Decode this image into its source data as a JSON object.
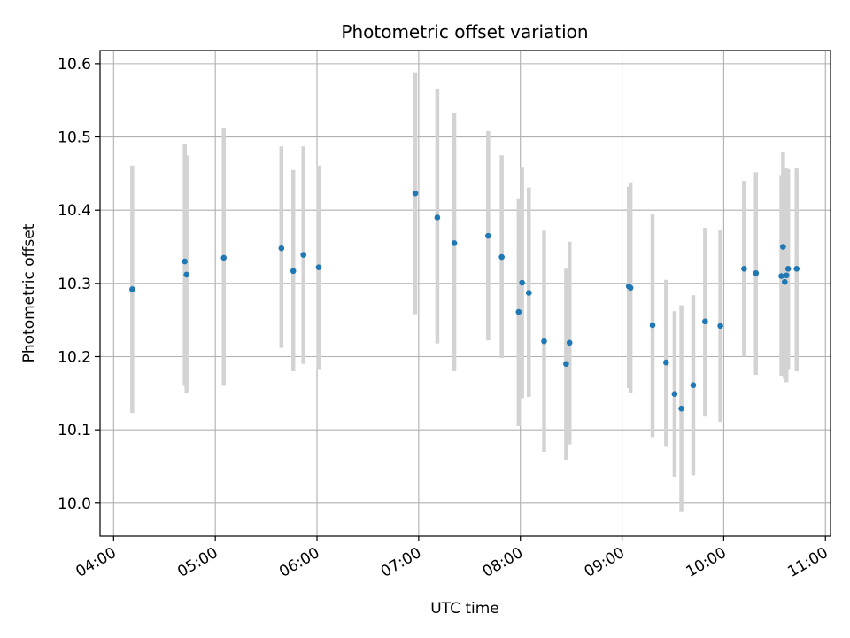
{
  "chart_data": {
    "type": "scatter",
    "title": "Photometric offset variation",
    "xlabel": "UTC time",
    "ylabel": "Photometric offset",
    "x_ticks": [
      "04:00",
      "05:00",
      "06:00",
      "07:00",
      "08:00",
      "09:00",
      "10:00",
      "11:00"
    ],
    "y_ticks": [
      "10.0",
      "10.1",
      "10.2",
      "10.3",
      "10.4",
      "10.5",
      "10.6"
    ],
    "xlim": [
      "03:52",
      "11:03"
    ],
    "ylim": [
      9.955,
      10.618
    ],
    "grid": true,
    "point_color": "#1f77b4",
    "errorbar_color": "#d3d3d3",
    "points": [
      {
        "time": "04:11",
        "value": 10.292,
        "low": 10.123,
        "high": 10.461
      },
      {
        "time": "04:42",
        "value": 10.33,
        "low": 10.16,
        "high": 10.49
      },
      {
        "time": "04:43",
        "value": 10.312,
        "low": 10.15,
        "high": 10.475
      },
      {
        "time": "05:05",
        "value": 10.335,
        "low": 10.16,
        "high": 10.512
      },
      {
        "time": "05:39",
        "value": 10.348,
        "low": 10.212,
        "high": 10.487
      },
      {
        "time": "05:46",
        "value": 10.317,
        "low": 10.18,
        "high": 10.455
      },
      {
        "time": "05:52",
        "value": 10.339,
        "low": 10.19,
        "high": 10.487
      },
      {
        "time": "06:01",
        "value": 10.322,
        "low": 10.183,
        "high": 10.461
      },
      {
        "time": "06:58",
        "value": 10.423,
        "low": 10.258,
        "high": 10.588
      },
      {
        "time": "07:11",
        "value": 10.39,
        "low": 10.218,
        "high": 10.565
      },
      {
        "time": "07:21",
        "value": 10.355,
        "low": 10.18,
        "high": 10.533
      },
      {
        "time": "07:41",
        "value": 10.365,
        "low": 10.222,
        "high": 10.508
      },
      {
        "time": "07:49",
        "value": 10.336,
        "low": 10.198,
        "high": 10.475
      },
      {
        "time": "07:59",
        "value": 10.261,
        "low": 10.105,
        "high": 10.415
      },
      {
        "time": "08:01",
        "value": 10.301,
        "low": 10.143,
        "high": 10.458
      },
      {
        "time": "08:05",
        "value": 10.287,
        "low": 10.145,
        "high": 10.431
      },
      {
        "time": "08:14",
        "value": 10.221,
        "low": 10.07,
        "high": 10.372
      },
      {
        "time": "08:27",
        "value": 10.19,
        "low": 10.059,
        "high": 10.32
      },
      {
        "time": "08:29",
        "value": 10.219,
        "low": 10.08,
        "high": 10.357
      },
      {
        "time": "09:04",
        "value": 10.296,
        "low": 10.157,
        "high": 10.432
      },
      {
        "time": "09:05",
        "value": 10.294,
        "low": 10.151,
        "high": 10.438
      },
      {
        "time": "09:18",
        "value": 10.243,
        "low": 10.09,
        "high": 10.394
      },
      {
        "time": "09:26",
        "value": 10.192,
        "low": 10.078,
        "high": 10.305
      },
      {
        "time": "09:31",
        "value": 10.149,
        "low": 10.036,
        "high": 10.262
      },
      {
        "time": "09:35",
        "value": 10.129,
        "low": 9.988,
        "high": 10.27
      },
      {
        "time": "09:42",
        "value": 10.161,
        "low": 10.038,
        "high": 10.284
      },
      {
        "time": "09:49",
        "value": 10.248,
        "low": 10.118,
        "high": 10.376
      },
      {
        "time": "09:58",
        "value": 10.242,
        "low": 10.111,
        "high": 10.373
      },
      {
        "time": "10:12",
        "value": 10.32,
        "low": 10.2,
        "high": 10.44
      },
      {
        "time": "10:19",
        "value": 10.314,
        "low": 10.175,
        "high": 10.452
      },
      {
        "time": "10:34",
        "value": 10.31,
        "low": 10.174,
        "high": 10.447
      },
      {
        "time": "10:35",
        "value": 10.35,
        "low": 10.22,
        "high": 10.48
      },
      {
        "time": "10:36",
        "value": 10.302,
        "low": 10.17,
        "high": 10.434
      },
      {
        "time": "10:37",
        "value": 10.311,
        "low": 10.165,
        "high": 10.457
      },
      {
        "time": "10:38",
        "value": 10.32,
        "low": 10.183,
        "high": 10.456
      },
      {
        "time": "10:43",
        "value": 10.32,
        "low": 10.18,
        "high": 10.457
      }
    ]
  }
}
